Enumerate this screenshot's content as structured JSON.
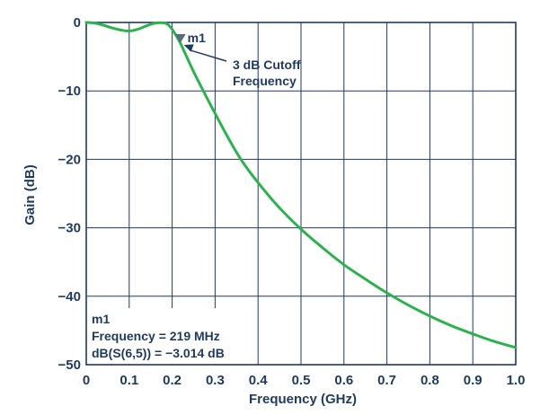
{
  "chart_data": {
    "type": "line",
    "xlabel": "Frequency (GHz)",
    "ylabel": "Gain (dB)",
    "xlim": [
      0,
      1.0
    ],
    "ylim": [
      -50,
      0
    ],
    "x_ticks": [
      "0",
      "0.1",
      "0.2",
      "0.3",
      "0.4",
      "0.5",
      "0.6",
      "0.7",
      "0.8",
      "0.9",
      "1.0"
    ],
    "y_ticks": [
      "0",
      "−10",
      "−20",
      "−30",
      "−40",
      "−50"
    ],
    "grid": true,
    "series": [
      {
        "color": "#2bb24c",
        "x": [
          0,
          0.02,
          0.04,
          0.06,
          0.08,
          0.1,
          0.12,
          0.14,
          0.16,
          0.18,
          0.19,
          0.2,
          0.21,
          0.219,
          0.23,
          0.25,
          0.27,
          0.3,
          0.33,
          0.36,
          0.4,
          0.45,
          0.5,
          0.55,
          0.6,
          0.65,
          0.7,
          0.75,
          0.8,
          0.85,
          0.9,
          0.95,
          1.0
        ],
        "y": [
          0,
          -0.1,
          -0.4,
          -0.8,
          -1.1,
          -1.25,
          -1.0,
          -0.5,
          -0.1,
          -0.05,
          -0.3,
          -1.0,
          -2.0,
          -3.014,
          -4.5,
          -7.2,
          -9.7,
          -13.3,
          -16.8,
          -20.0,
          -23.4,
          -27.1,
          -30.2,
          -32.9,
          -35.4,
          -37.5,
          -39.5,
          -41.3,
          -42.9,
          -44.3,
          -45.5,
          -46.6,
          -47.5
        ]
      }
    ],
    "marker": {
      "label": "m1",
      "x": 0.219,
      "y": -3.014,
      "color": "#5a6b7b"
    },
    "annotation": {
      "line1": "3 dB Cutoff",
      "line2": "Frequency"
    },
    "readout": {
      "line1": "m1",
      "line2": "Frequency = 219 MHz",
      "line3": "dB(S(6,5)) = −3.014 dB"
    }
  },
  "colors": {
    "axis_text": "#1f3a5f",
    "grid": "#1f3a5f",
    "curve": "#2bb24c"
  }
}
